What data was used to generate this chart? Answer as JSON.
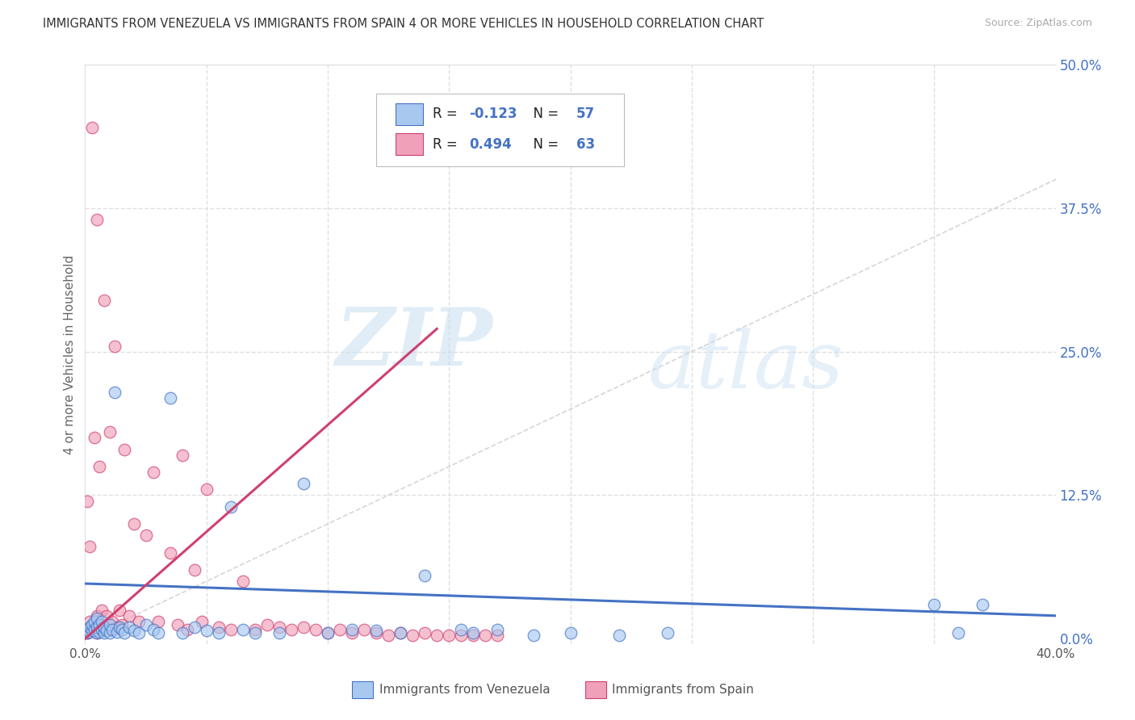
{
  "title": "IMMIGRANTS FROM VENEZUELA VS IMMIGRANTS FROM SPAIN 4 OR MORE VEHICLES IN HOUSEHOLD CORRELATION CHART",
  "source": "Source: ZipAtlas.com",
  "ylabel": "4 or more Vehicles in Household",
  "xlim": [
    0.0,
    0.4
  ],
  "ylim": [
    -0.005,
    0.5
  ],
  "xtick_positions": [
    0.0,
    0.05,
    0.1,
    0.15,
    0.2,
    0.25,
    0.3,
    0.35,
    0.4
  ],
  "xtick_labels": [
    "0.0%",
    "",
    "",
    "",
    "",
    "",
    "",
    "",
    "40.0%"
  ],
  "ytick_positions": [
    0.0,
    0.125,
    0.25,
    0.375,
    0.5
  ],
  "ytick_labels": [
    "0.0%",
    "12.5%",
    "25.0%",
    "37.5%",
    "50.0%"
  ],
  "legend_label1": "Immigrants from Venezuela",
  "legend_label2": "Immigrants from Spain",
  "R1": -0.123,
  "N1": 57,
  "R2": 0.494,
  "N2": 63,
  "color_venezuela": "#a8c8f0",
  "color_spain": "#f0a0b8",
  "line_color_venezuela": "#4472c4",
  "line_color_spain": "#d04070",
  "diagonal_color": "#cccccc",
  "watermark_zip": "ZIP",
  "watermark_atlas": "atlas",
  "grid_color": "#e0e0e0",
  "right_tick_color": "#4472c4",
  "venezuela_x": [
    0.001,
    0.001,
    0.002,
    0.002,
    0.003,
    0.003,
    0.004,
    0.004,
    0.005,
    0.005,
    0.005,
    0.006,
    0.006,
    0.007,
    0.007,
    0.008,
    0.008,
    0.009,
    0.01,
    0.01,
    0.011,
    0.012,
    0.013,
    0.014,
    0.015,
    0.016,
    0.018,
    0.02,
    0.022,
    0.025,
    0.028,
    0.03,
    0.035,
    0.04,
    0.045,
    0.05,
    0.055,
    0.06,
    0.065,
    0.07,
    0.08,
    0.09,
    0.1,
    0.11,
    0.12,
    0.13,
    0.14,
    0.155,
    0.16,
    0.17,
    0.185,
    0.2,
    0.22,
    0.24,
    0.35,
    0.36,
    0.37
  ],
  "venezuela_y": [
    0.005,
    0.008,
    0.006,
    0.01,
    0.007,
    0.012,
    0.008,
    0.015,
    0.005,
    0.01,
    0.018,
    0.006,
    0.012,
    0.008,
    0.015,
    0.005,
    0.01,
    0.007,
    0.005,
    0.012,
    0.008,
    0.215,
    0.006,
    0.01,
    0.008,
    0.005,
    0.01,
    0.007,
    0.005,
    0.012,
    0.008,
    0.005,
    0.21,
    0.005,
    0.01,
    0.007,
    0.005,
    0.115,
    0.008,
    0.005,
    0.005,
    0.135,
    0.005,
    0.008,
    0.007,
    0.005,
    0.055,
    0.008,
    0.005,
    0.008,
    0.003,
    0.005,
    0.003,
    0.005,
    0.03,
    0.005,
    0.03
  ],
  "spain_x": [
    0.001,
    0.001,
    0.002,
    0.002,
    0.003,
    0.003,
    0.004,
    0.004,
    0.005,
    0.005,
    0.005,
    0.006,
    0.006,
    0.007,
    0.007,
    0.008,
    0.008,
    0.009,
    0.01,
    0.01,
    0.011,
    0.012,
    0.013,
    0.014,
    0.015,
    0.016,
    0.018,
    0.02,
    0.022,
    0.025,
    0.028,
    0.03,
    0.035,
    0.038,
    0.04,
    0.042,
    0.045,
    0.048,
    0.05,
    0.055,
    0.06,
    0.065,
    0.07,
    0.075,
    0.08,
    0.085,
    0.09,
    0.095,
    0.1,
    0.105,
    0.11,
    0.115,
    0.12,
    0.125,
    0.13,
    0.135,
    0.14,
    0.145,
    0.15,
    0.155,
    0.16,
    0.165,
    0.17
  ],
  "spain_y": [
    0.12,
    0.005,
    0.015,
    0.08,
    0.445,
    0.008,
    0.01,
    0.175,
    0.005,
    0.02,
    0.365,
    0.008,
    0.15,
    0.012,
    0.025,
    0.295,
    0.01,
    0.02,
    0.008,
    0.18,
    0.015,
    0.255,
    0.01,
    0.025,
    0.012,
    0.165,
    0.02,
    0.1,
    0.015,
    0.09,
    0.145,
    0.015,
    0.075,
    0.012,
    0.16,
    0.008,
    0.06,
    0.015,
    0.13,
    0.01,
    0.008,
    0.05,
    0.008,
    0.012,
    0.01,
    0.008,
    0.01,
    0.008,
    0.005,
    0.008,
    0.005,
    0.008,
    0.005,
    0.003,
    0.005,
    0.003,
    0.005,
    0.003,
    0.003,
    0.003,
    0.003,
    0.003,
    0.003
  ],
  "ven_line_x": [
    0.0,
    0.4
  ],
  "ven_line_y": [
    0.048,
    0.02
  ],
  "spain_line_x": [
    0.0,
    0.145
  ],
  "spain_line_y": [
    0.0,
    0.27
  ]
}
